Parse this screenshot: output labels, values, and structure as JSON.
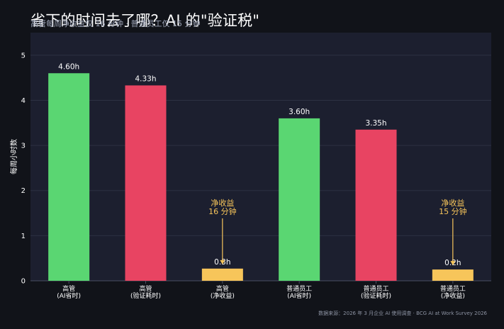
{
  "chart_data": {
    "type": "bar",
    "title": "省下的时间去了哪？AI 的\"验证税\"",
    "subtitle": "高管每周净收益仅 16 分钟 · 普通员工仅 15 分钟",
    "ylabel": "每周小时数",
    "xlabel": "",
    "ylim": [
      0,
      5.5
    ],
    "yticks": [
      0,
      1,
      2,
      3,
      4,
      5
    ],
    "grid": true,
    "categories": [
      [
        "高管",
        "(AI省时)"
      ],
      [
        "高管",
        "(验证耗时)"
      ],
      [
        "高管",
        "(净收益)"
      ],
      [
        "普通员工",
        "(AI省时)"
      ],
      [
        "普通员工",
        "(验证耗时)"
      ],
      [
        "普通员工",
        "(净收益)"
      ]
    ],
    "values": [
      4.6,
      4.33,
      0.27,
      3.6,
      3.35,
      0.25
    ],
    "value_labels": [
      "4.60h",
      "4.33h",
      "0.3h",
      "3.60h",
      "3.35h",
      "0.2h"
    ],
    "bar_colors": [
      "#5ad672",
      "#e84462",
      "#f7c55a",
      "#5ad672",
      "#e84462",
      "#f7c55a"
    ],
    "annotations": [
      {
        "lines": [
          "净收益",
          "16 分钟"
        ],
        "bar_index": 2
      },
      {
        "lines": [
          "净收益",
          "15 分钟"
        ],
        "bar_index": 5
      }
    ],
    "source": "数据来源：2026 年 3 月企业 AI 使用调查 · BCG AI at Work Survey 2026"
  },
  "colors": {
    "page_background": "#111319",
    "plot_background": "#1c1f2f",
    "grid": "#2d3142",
    "axis_text": "#ffffff",
    "annotation": "#f7c55a"
  }
}
